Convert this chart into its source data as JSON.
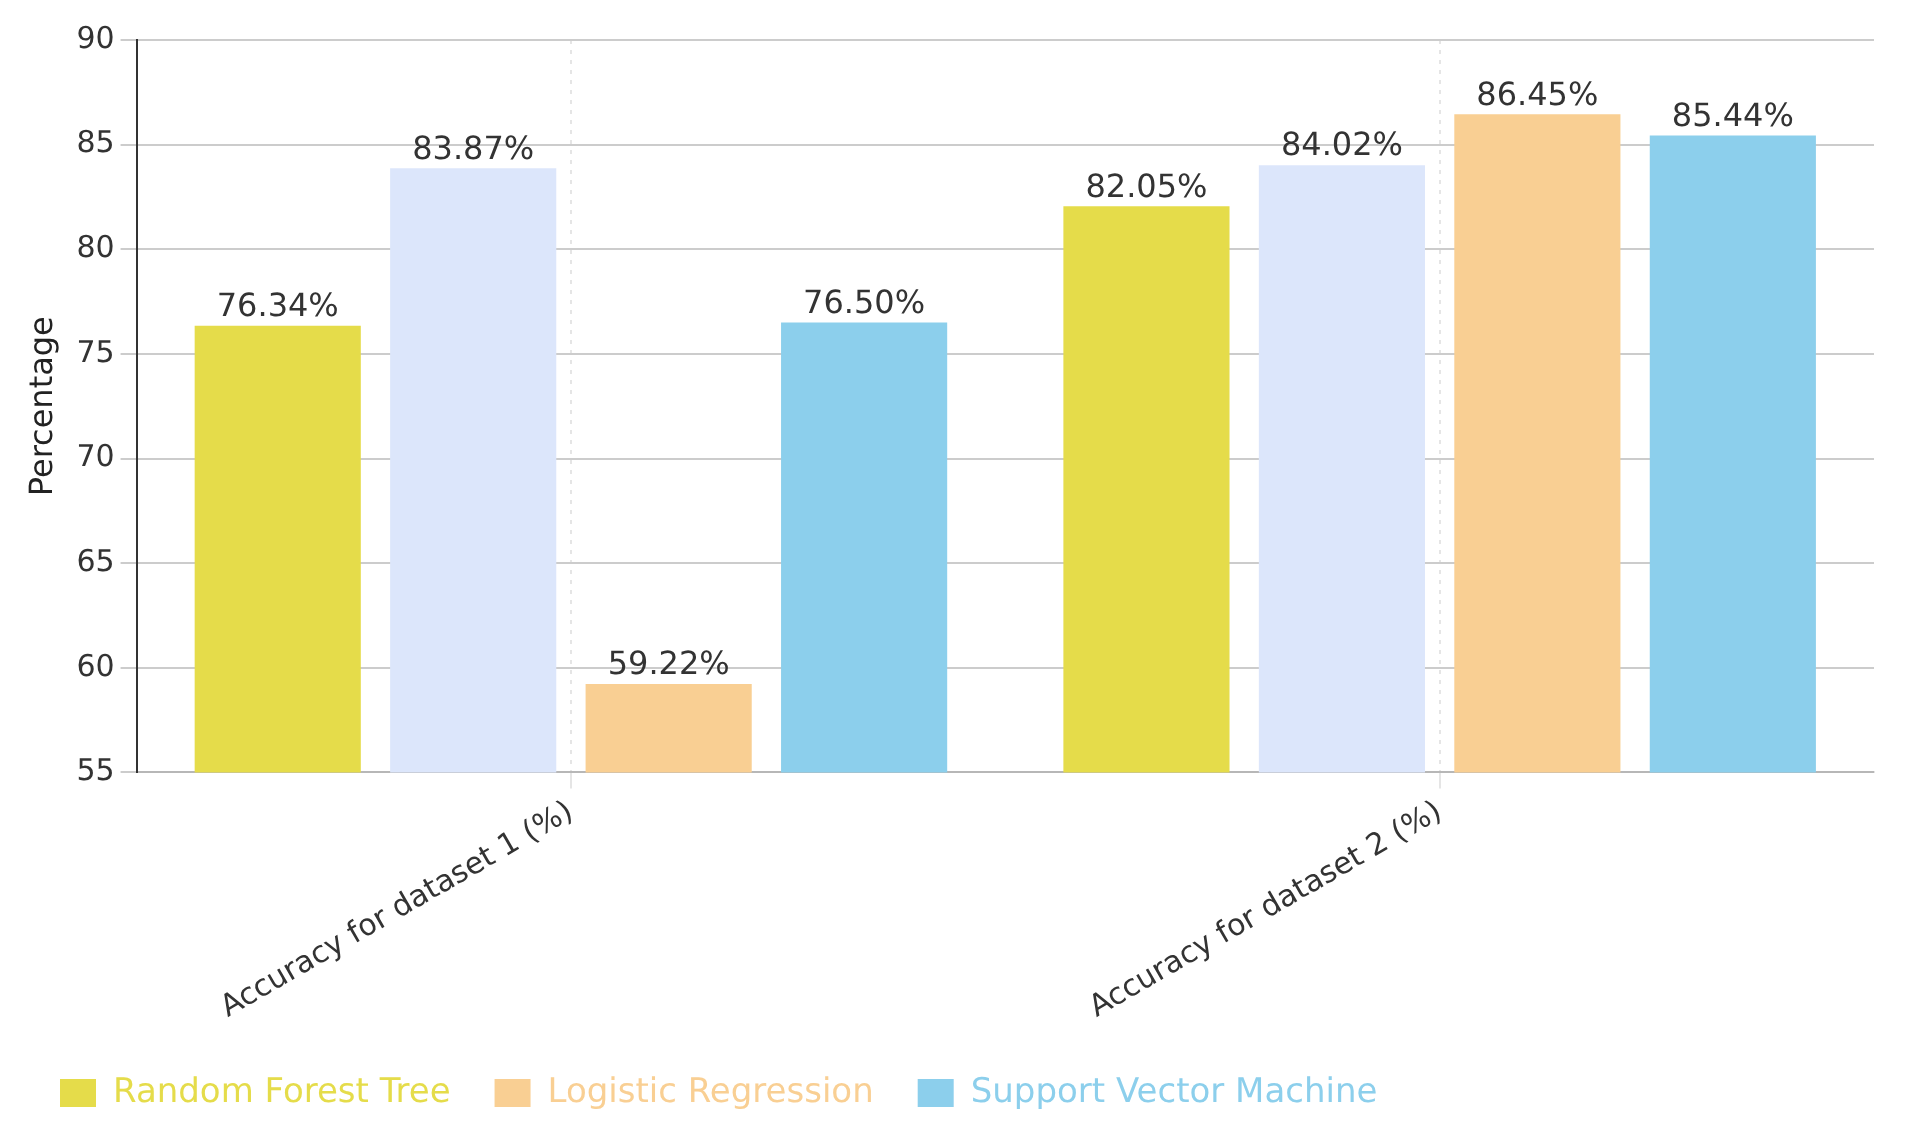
{
  "chart_data": {
    "type": "bar",
    "ylabel": "Percentage",
    "categories": [
      "Accuracy for dataset 1 (%)",
      "Accuracy for dataset 2 (%)"
    ],
    "series": [
      {
        "name": "Random Forest Tree",
        "color": "#e5dc4a",
        "values": [
          76.34,
          82.05
        ],
        "value_labels": [
          "76.34%",
          "82.05%"
        ]
      },
      {
        "color": "#dce6fb",
        "values": [
          83.87,
          84.02
        ],
        "value_labels": [
          "83.87%",
          "84.02%"
        ]
      },
      {
        "name": "Logistic Regression",
        "color": "#f9cf93",
        "values": [
          59.22,
          86.45
        ],
        "value_labels": [
          "59.22%",
          "86.45%"
        ]
      },
      {
        "name": "Support Vector Machine",
        "color": "#8ccfec",
        "values": [
          76.5,
          85.44
        ],
        "value_labels": [
          "76.50%",
          "85.44%"
        ]
      }
    ],
    "ylim": [
      55,
      90
    ],
    "yticks": [
      55,
      60,
      65,
      70,
      75,
      80,
      85,
      90
    ],
    "grid": true,
    "legend": "bottom left"
  }
}
